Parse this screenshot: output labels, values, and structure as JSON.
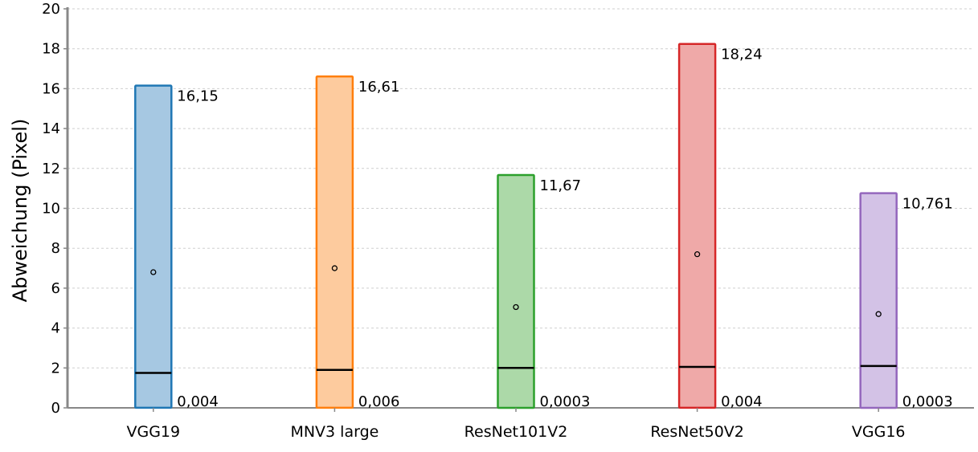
{
  "chart_data": {
    "type": "box",
    "ylabel": "Abweichung (Pixel)",
    "xlabel": "",
    "title": "",
    "ylim": [
      0,
      20
    ],
    "yticks": [
      0,
      2,
      4,
      6,
      8,
      10,
      12,
      14,
      16,
      18,
      20
    ],
    "grid": true,
    "series": [
      {
        "name": "VGG19",
        "min": 0.004,
        "max": 16.15,
        "median": 1.75,
        "mean": 6.8,
        "min_label": "0,004",
        "max_label": "16,15",
        "color": "#1f77b4",
        "fill": "#a6c8e2"
      },
      {
        "name": "MNV3 large",
        "min": 0.006,
        "max": 16.61,
        "median": 1.9,
        "mean": 7.0,
        "min_label": "0,006",
        "max_label": "16,61",
        "color": "#ff7f0e",
        "fill": "#fdcb9e"
      },
      {
        "name": "ResNet101V2",
        "min": 0.0003,
        "max": 11.67,
        "median": 2.0,
        "mean": 5.05,
        "min_label": "0,0003",
        "max_label": "11,67",
        "color": "#2ca02c",
        "fill": "#acd9a8"
      },
      {
        "name": "ResNet50V2",
        "min": 0.004,
        "max": 18.24,
        "median": 2.05,
        "mean": 7.7,
        "min_label": "0,004",
        "max_label": "18,24",
        "color": "#d62728",
        "fill": "#efa9a8"
      },
      {
        "name": "VGG16",
        "min": 0.0003,
        "max": 10.761,
        "median": 2.1,
        "mean": 4.7,
        "min_label": "0,0003",
        "max_label": "10,761",
        "color": "#9467bd",
        "fill": "#d3c2e6"
      }
    ]
  }
}
